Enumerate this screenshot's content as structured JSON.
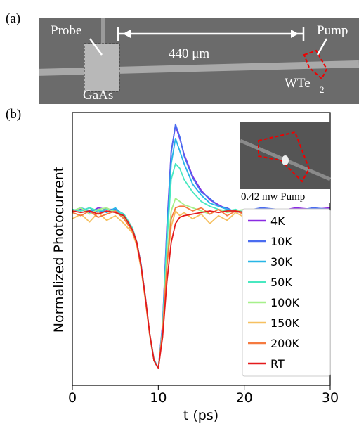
{
  "panel_a": {
    "label": "(a)",
    "probe": "Probe",
    "distance": "440 μm",
    "pump": "Pump",
    "gaas": "GaAs",
    "wte": "WTe",
    "wte_sub": "2"
  },
  "chart_data": {
    "type": "line",
    "panel_label": "(b)",
    "inset_label": "0.42 mw Pump",
    "x_label": "t (ps)",
    "y_label": "Normalized Photocurrent",
    "xlim": [
      0,
      30
    ],
    "xticks": [
      0,
      10,
      20,
      30
    ],
    "ylim": [
      -1.107,
      0.625
    ],
    "legend": "lower right",
    "x": [
      0,
      1,
      2,
      3,
      4,
      5,
      6,
      7,
      7.5,
      8,
      8.5,
      9,
      9.5,
      10,
      10.5,
      11,
      11.5,
      12,
      12.5,
      13,
      14,
      15,
      16,
      17,
      18,
      19,
      20,
      22,
      24,
      26,
      28,
      30
    ],
    "series": [
      {
        "name": "4K",
        "color": "#8a2be2",
        "values": [
          0,
          0.01,
          -0.01,
          0.02,
          0.01,
          0,
          -0.03,
          -0.12,
          -0.2,
          -0.35,
          -0.55,
          -0.78,
          -0.95,
          -1.0,
          -0.72,
          -0.1,
          0.38,
          0.54,
          0.46,
          0.36,
          0.22,
          0.13,
          0.07,
          0.04,
          0.01,
          0.0,
          -0.02,
          0.01,
          0.0,
          0.02,
          0.01,
          0.02
        ]
      },
      {
        "name": "10K",
        "color": "#4a6cf0",
        "values": [
          0.01,
          0,
          0.02,
          -0.01,
          0.01,
          0.01,
          -0.02,
          -0.11,
          -0.2,
          -0.34,
          -0.55,
          -0.79,
          -0.95,
          -1.0,
          -0.73,
          -0.12,
          0.37,
          0.55,
          0.47,
          0.35,
          0.21,
          0.12,
          0.08,
          0.03,
          0.02,
          -0.01,
          0.0,
          0.02,
          0.01,
          0.0,
          0.02,
          0.01
        ]
      },
      {
        "name": "30K",
        "color": "#27b6e6",
        "values": [
          0,
          0.02,
          0,
          0.01,
          -0.01,
          0.02,
          -0.03,
          -0.12,
          -0.21,
          -0.36,
          -0.56,
          -0.78,
          -0.94,
          -1.0,
          -0.74,
          -0.15,
          0.3,
          0.46,
          0.38,
          0.3,
          0.17,
          0.1,
          0.05,
          0.03,
          0.01,
          0.0,
          -0.01,
          0.01,
          0.0,
          0.01,
          0.0,
          0.01
        ]
      },
      {
        "name": "50K",
        "color": "#48e8c0",
        "values": [
          0.01,
          0,
          0.02,
          0,
          0.01,
          0,
          -0.02,
          -0.11,
          -0.2,
          -0.35,
          -0.55,
          -0.79,
          -0.95,
          -1.0,
          -0.75,
          -0.2,
          0.2,
          0.3,
          0.27,
          0.2,
          0.12,
          0.06,
          0.03,
          0.01,
          0.0,
          0.01,
          -0.01,
          0.0,
          0.01,
          0.0,
          0.01,
          0.0
        ]
      },
      {
        "name": "100K",
        "color": "#a6f08a",
        "values": [
          0,
          0.02,
          -0.02,
          0.01,
          0.02,
          -0.01,
          -0.04,
          -0.12,
          -0.21,
          -0.36,
          -0.56,
          -0.78,
          -0.95,
          -1.0,
          -0.76,
          -0.3,
          0.0,
          0.08,
          0.06,
          0.04,
          0.02,
          0.0,
          -0.02,
          0.01,
          -0.01,
          0.0,
          0.01,
          -0.02,
          0.0,
          0.01,
          -0.01,
          0.0
        ]
      },
      {
        "name": "150K",
        "color": "#f6c060",
        "values": [
          -0.05,
          -0.02,
          -0.07,
          -0.01,
          -0.06,
          -0.03,
          -0.08,
          -0.14,
          -0.22,
          -0.37,
          -0.57,
          -0.79,
          -0.95,
          -1.0,
          -0.77,
          -0.35,
          -0.1,
          0.0,
          -0.03,
          -0.01,
          -0.05,
          -0.02,
          -0.08,
          -0.03,
          -0.06,
          -0.01,
          -0.04,
          -0.07,
          -0.02,
          -0.05,
          -0.03,
          -0.02
        ]
      },
      {
        "name": "200K",
        "color": "#f57a40",
        "values": [
          -0.01,
          -0.03,
          0.0,
          -0.04,
          -0.02,
          0.0,
          -0.05,
          -0.13,
          -0.21,
          -0.36,
          -0.56,
          -0.78,
          -0.95,
          -1.0,
          -0.77,
          -0.35,
          -0.05,
          0.02,
          0.03,
          0.03,
          0.0,
          0.02,
          -0.02,
          0.01,
          -0.03,
          0.0,
          -0.02,
          -0.01,
          0.01,
          -0.02,
          0.0,
          -0.01
        ]
      },
      {
        "name": "RT",
        "color": "#e41a1c",
        "values": [
          0,
          -0.01,
          0.0,
          -0.02,
          0.0,
          -0.01,
          -0.03,
          -0.12,
          -0.2,
          -0.35,
          -0.55,
          -0.78,
          -0.95,
          -1.0,
          -0.8,
          -0.45,
          -0.2,
          -0.08,
          -0.04,
          -0.03,
          -0.02,
          -0.01,
          0.0,
          -0.01,
          0.0,
          0.0,
          -0.01,
          0.0,
          0.0,
          -0.01,
          0.0,
          0.0
        ]
      }
    ]
  }
}
